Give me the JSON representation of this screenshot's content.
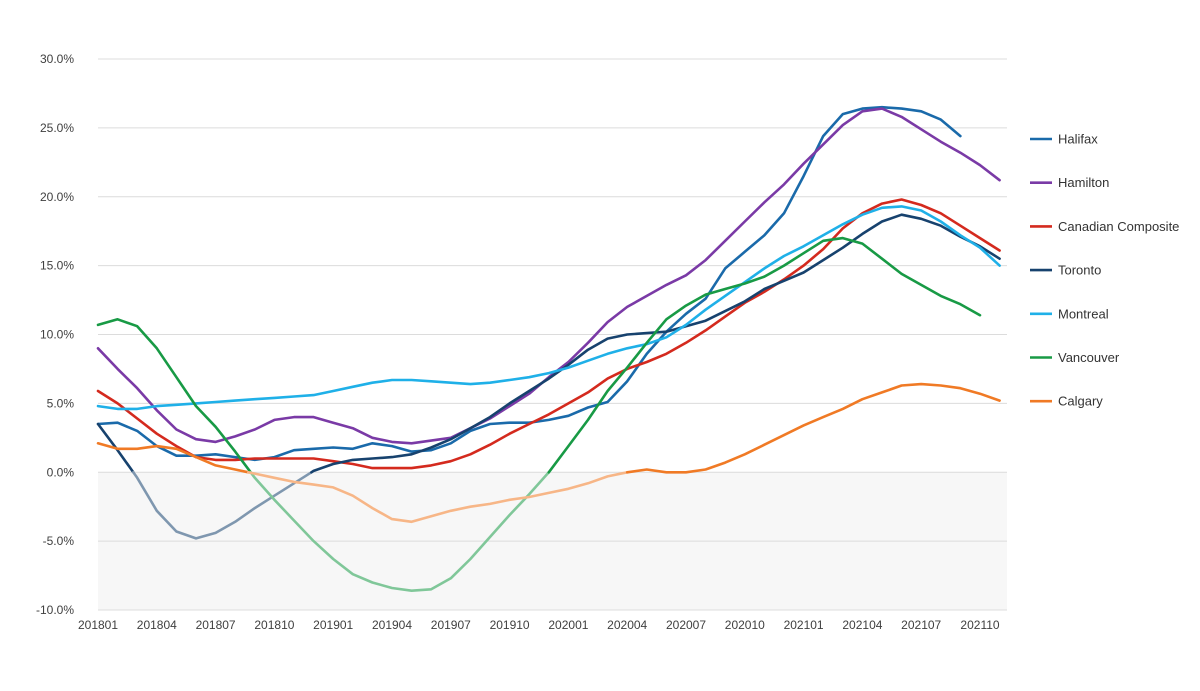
{
  "chart_data": {
    "type": "line",
    "title": "",
    "xlabel": "",
    "ylabel": "",
    "ylim": [
      -10,
      30
    ],
    "yticks": [
      "30.0%",
      "25.0%",
      "20.0%",
      "15.0%",
      "10.0%",
      "5.0%",
      "0.0%",
      "-5.0%",
      "-10.0%"
    ],
    "ytick_values": [
      30,
      25,
      20,
      15,
      10,
      5,
      0,
      -5,
      -10
    ],
    "xticks": [
      "201801",
      "201804",
      "201807",
      "201810",
      "201901",
      "201904",
      "201907",
      "201910",
      "202001",
      "202004",
      "202007",
      "202010",
      "202101",
      "202104",
      "202107",
      "202110"
    ],
    "xtick_index": [
      0,
      3,
      6,
      9,
      12,
      15,
      18,
      21,
      24,
      27,
      30,
      33,
      36,
      39,
      42,
      45
    ],
    "grid": true,
    "negative_region_shaded": true,
    "negative_values_faded": true,
    "legend_position": "right",
    "series": [
      {
        "name": "Halifax",
        "color": "#1a6aaa",
        "values": [
          3.5,
          3.6,
          3.0,
          1.9,
          1.2,
          1.2,
          1.3,
          1.1,
          0.9,
          1.1,
          1.6,
          1.7,
          1.8,
          1.7,
          2.1,
          1.9,
          1.5,
          1.6,
          2.1,
          3.0,
          3.5,
          3.6,
          3.6,
          3.8,
          4.1,
          4.7,
          5.1,
          6.6,
          8.6,
          10.2,
          11.5,
          12.6,
          14.8,
          16.0,
          17.2,
          18.8,
          21.5,
          24.4,
          26.0,
          26.4,
          26.5,
          26.4,
          26.2,
          25.6,
          24.4
        ]
      },
      {
        "name": "Hamilton",
        "color": "#7a3aa6",
        "values": [
          9.0,
          7.5,
          6.1,
          4.5,
          3.1,
          2.4,
          2.2,
          2.6,
          3.1,
          3.8,
          4.0,
          4.0,
          3.6,
          3.2,
          2.5,
          2.2,
          2.1,
          2.3,
          2.5,
          3.2,
          3.9,
          4.8,
          5.7,
          6.9,
          8.0,
          9.4,
          10.9,
          12.0,
          12.8,
          13.6,
          14.3,
          15.4,
          16.8,
          18.2,
          19.6,
          20.9,
          22.4,
          23.8,
          25.2,
          26.2,
          26.4,
          25.8,
          24.9,
          24.0,
          23.2,
          22.3,
          21.2
        ]
      },
      {
        "name": "Canadian Composite",
        "color": "#d42a1e",
        "values": [
          5.9,
          5.0,
          3.9,
          2.8,
          1.9,
          1.1,
          0.9,
          0.9,
          1.0,
          1.0,
          1.0,
          1.0,
          0.8,
          0.6,
          0.3,
          0.3,
          0.3,
          0.5,
          0.8,
          1.3,
          2.0,
          2.8,
          3.5,
          4.2,
          5.0,
          5.8,
          6.8,
          7.5,
          8.0,
          8.6,
          9.4,
          10.3,
          11.3,
          12.3,
          13.1,
          14.0,
          15.0,
          16.2,
          17.7,
          18.8,
          19.5,
          19.8,
          19.4,
          18.8,
          17.9,
          17.0,
          16.1
        ]
      },
      {
        "name": "Toronto",
        "color": "#17426e",
        "values": [
          3.5,
          1.6,
          -0.4,
          -2.8,
          -4.3,
          -4.8,
          -4.4,
          -3.6,
          -2.6,
          -1.7,
          -0.8,
          0.1,
          0.6,
          0.9,
          1.0,
          1.1,
          1.3,
          1.8,
          2.4,
          3.2,
          4.0,
          5.0,
          5.9,
          6.8,
          7.8,
          8.9,
          9.7,
          10.0,
          10.1,
          10.2,
          10.6,
          11.0,
          11.7,
          12.4,
          13.3,
          13.9,
          14.5,
          15.4,
          16.3,
          17.3,
          18.2,
          18.7,
          18.4,
          17.9,
          17.1,
          16.4,
          15.5
        ]
      },
      {
        "name": "Montreal",
        "color": "#1fb0e8",
        "values": [
          4.8,
          4.6,
          4.6,
          4.8,
          4.9,
          5.0,
          5.1,
          5.2,
          5.3,
          5.4,
          5.5,
          5.6,
          5.9,
          6.2,
          6.5,
          6.7,
          6.7,
          6.6,
          6.5,
          6.4,
          6.5,
          6.7,
          6.9,
          7.2,
          7.6,
          8.1,
          8.6,
          9.0,
          9.3,
          9.8,
          10.7,
          11.8,
          12.8,
          13.8,
          14.8,
          15.7,
          16.4,
          17.2,
          18.0,
          18.7,
          19.2,
          19.3,
          19.0,
          18.2,
          17.2,
          16.3,
          15.0
        ]
      },
      {
        "name": "Vancouver",
        "color": "#189a45",
        "values": [
          10.7,
          11.1,
          10.6,
          9.0,
          6.9,
          4.8,
          3.3,
          1.5,
          -0.4,
          -2.0,
          -3.5,
          -5.0,
          -6.3,
          -7.4,
          -8.0,
          -8.4,
          -8.6,
          -8.5,
          -7.7,
          -6.3,
          -4.7,
          -3.1,
          -1.6,
          0.0,
          1.9,
          3.8,
          5.9,
          7.6,
          9.4,
          11.1,
          12.1,
          12.9,
          13.3,
          13.7,
          14.2,
          15.0,
          15.9,
          16.8,
          17.0,
          16.6,
          15.5,
          14.4,
          13.6,
          12.8,
          12.2,
          11.4
        ]
      },
      {
        "name": "Calgary",
        "color": "#f07a25",
        "values": [
          2.1,
          1.7,
          1.7,
          1.9,
          1.7,
          1.1,
          0.5,
          0.2,
          -0.1,
          -0.4,
          -0.7,
          -0.9,
          -1.1,
          -1.7,
          -2.6,
          -3.4,
          -3.6,
          -3.2,
          -2.8,
          -2.5,
          -2.3,
          -2.0,
          -1.8,
          -1.5,
          -1.2,
          -0.8,
          -0.3,
          0.0,
          0.2,
          0.0,
          0.0,
          0.2,
          0.7,
          1.3,
          2.0,
          2.7,
          3.4,
          4.0,
          4.6,
          5.3,
          5.8,
          6.3,
          6.4,
          6.3,
          6.1,
          5.7,
          5.2
        ]
      }
    ]
  }
}
